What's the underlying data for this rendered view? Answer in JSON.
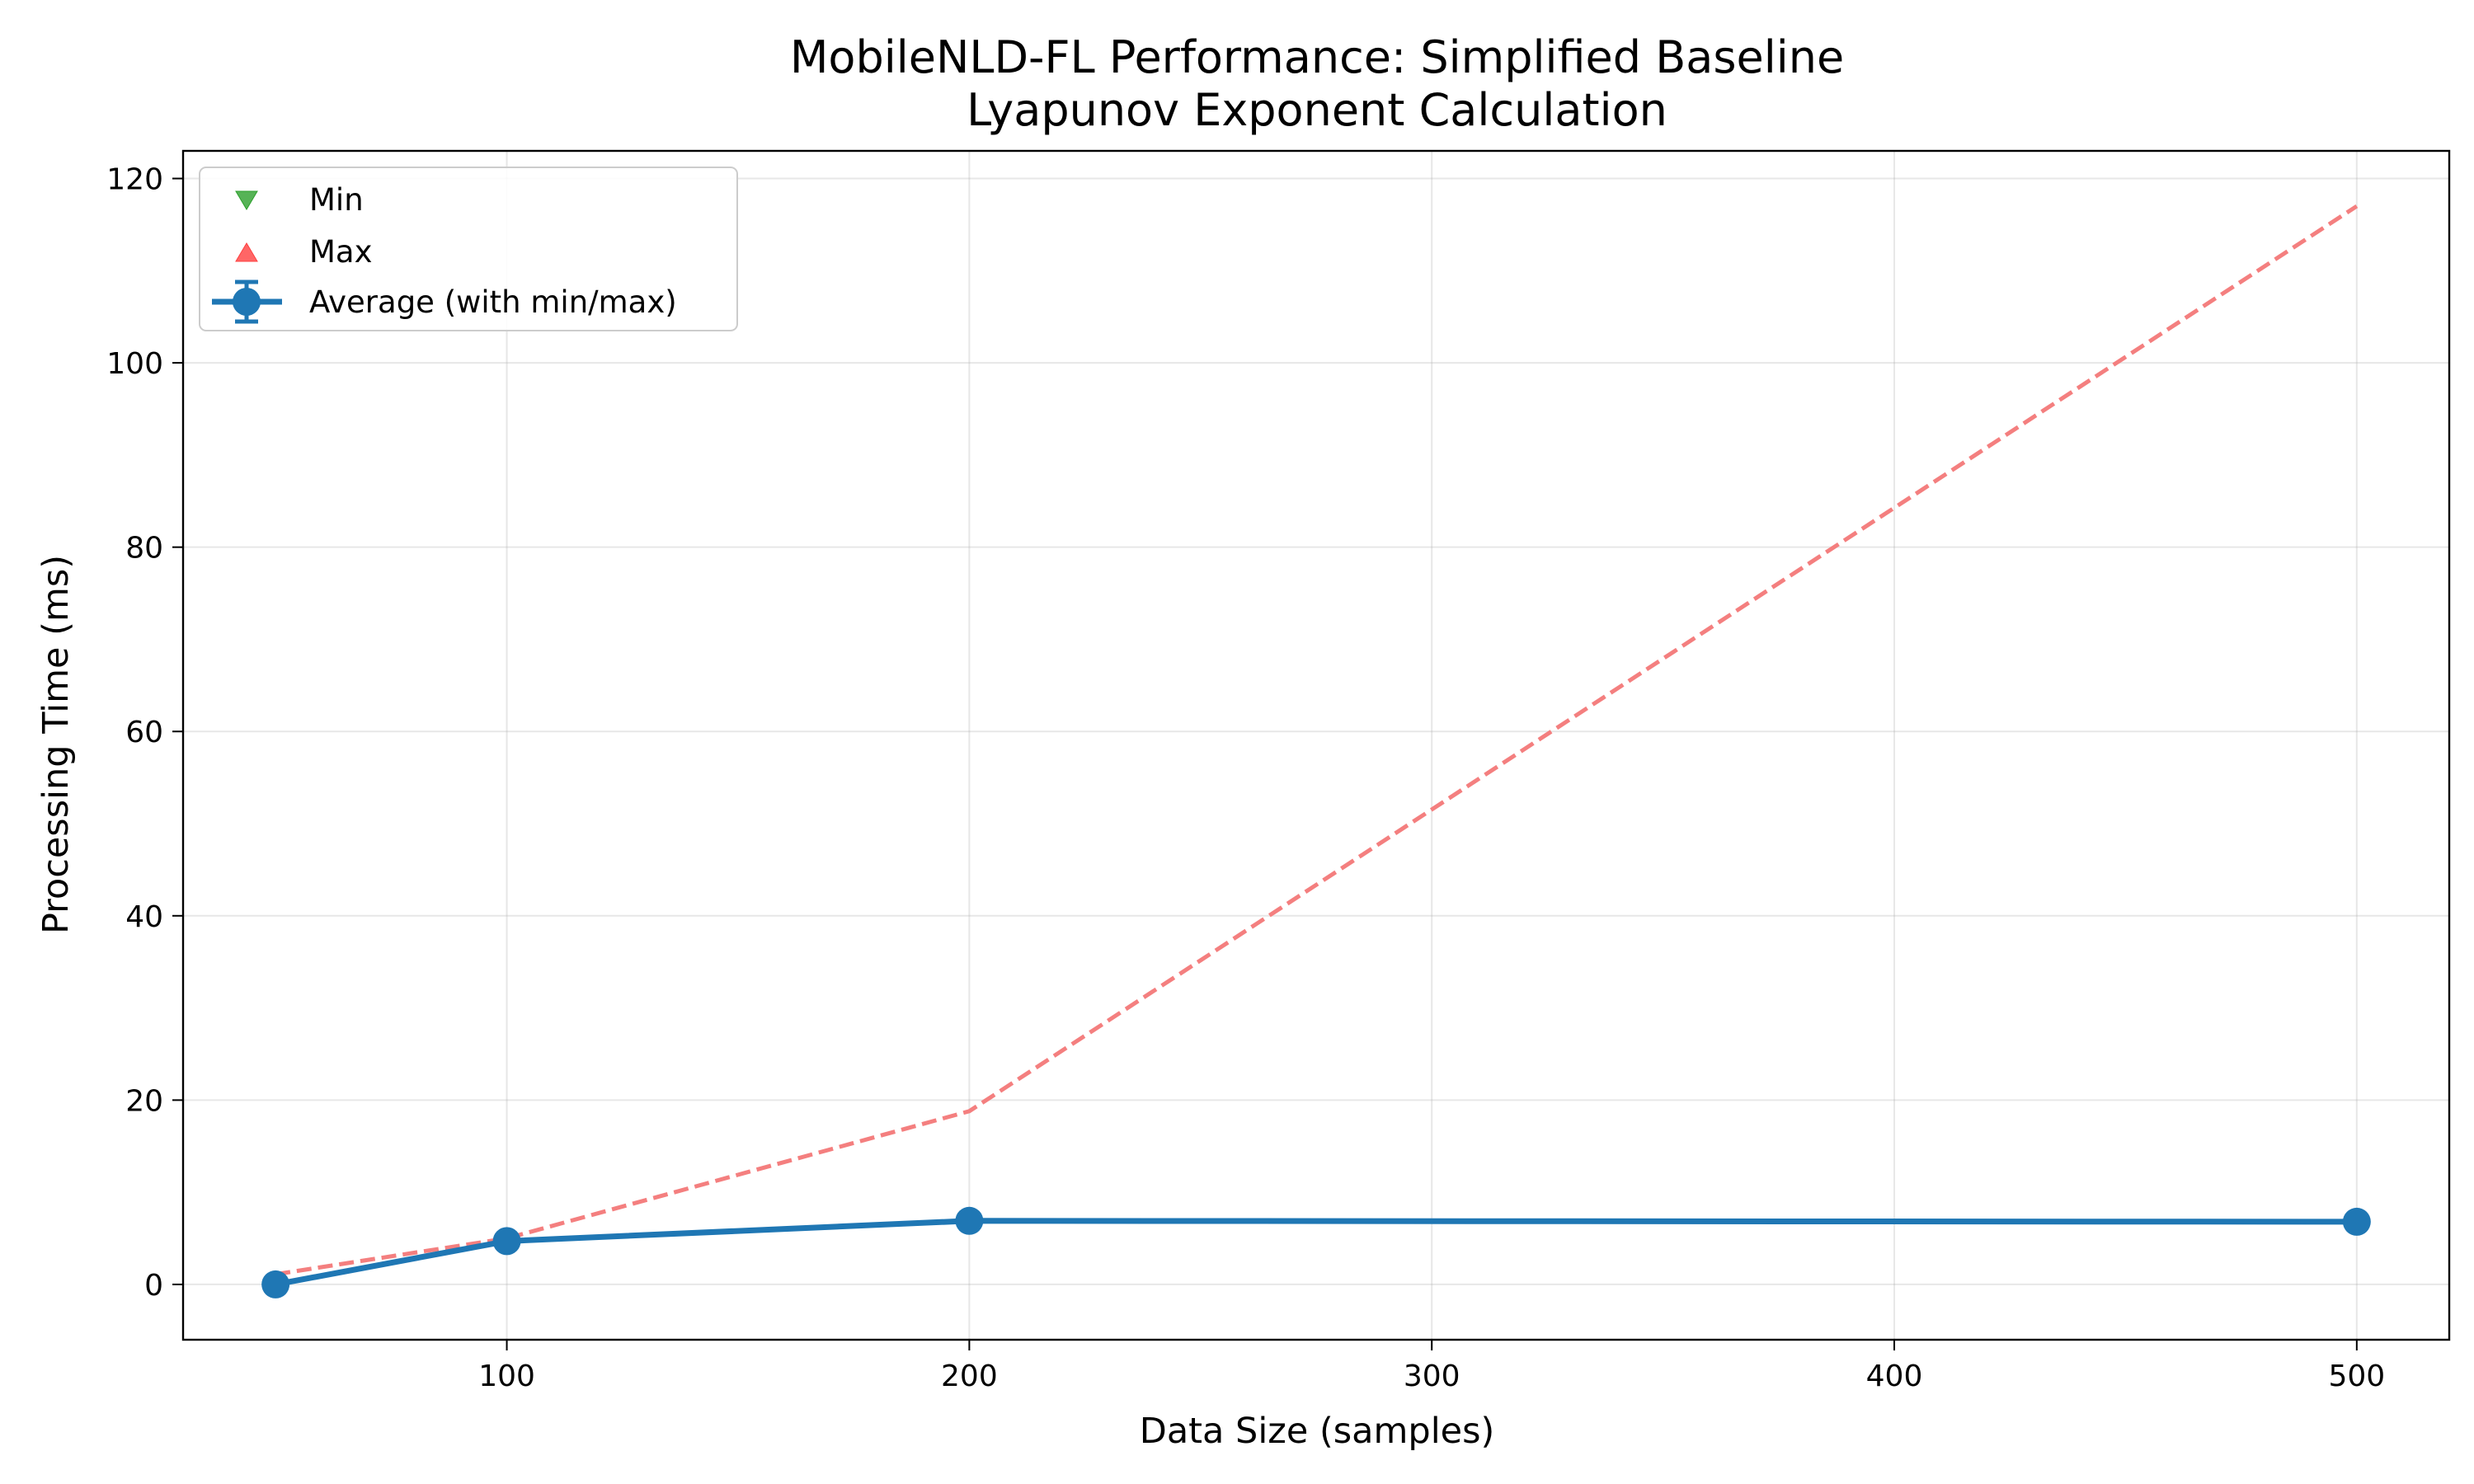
{
  "chart_data": {
    "type": "line",
    "title": "MobileNLD-FL Performance: Simplified Baseline",
    "subtitle": "Lyapunov Exponent Calculation",
    "xlabel": "Data Size (samples)",
    "ylabel": "Processing Time (ms)",
    "xlim": [
      30,
      520
    ],
    "ylim": [
      -6,
      123
    ],
    "xticks": [
      100,
      200,
      300,
      400,
      500
    ],
    "yticks": [
      0,
      20,
      40,
      60,
      80,
      100,
      120
    ],
    "grid": true,
    "legend_position": "top-left",
    "x": [
      50,
      100,
      200,
      500
    ],
    "series": [
      {
        "name": "Average (with min/max)",
        "values": [
          0.0,
          4.7,
          6.9,
          6.8
        ],
        "color": "#1f77b4",
        "style": "solid-markers"
      },
      {
        "name": "Max",
        "values": [
          1.1,
          5.0,
          18.8,
          117.0
        ],
        "color": "#f47f7f",
        "style": "dashed"
      },
      {
        "name": "Min",
        "values": [
          0.0,
          4.7,
          6.9,
          6.8
        ],
        "color": "#2ca02c",
        "style": "none"
      }
    ],
    "legend": [
      {
        "label": "Min",
        "marker": "triangle-down",
        "color": "#2ca02c"
      },
      {
        "label": "Max",
        "marker": "triangle-up",
        "color": "#ff4040"
      },
      {
        "label": "Average (with min/max)",
        "marker": "errorbar-circle",
        "color": "#1f77b4"
      }
    ]
  }
}
